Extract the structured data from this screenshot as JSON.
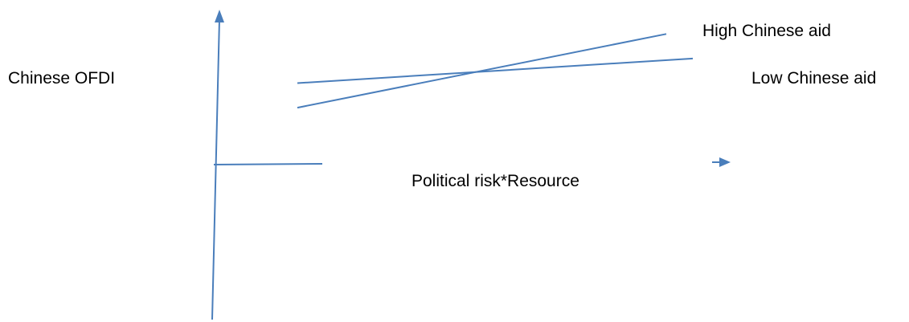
{
  "chart_data": {
    "type": "line",
    "title": "",
    "xlabel": "Political risk*Resource",
    "ylabel": "Chinese OFDI",
    "xlim": [
      0,
      10
    ],
    "ylim": [
      -10,
      10
    ],
    "grid": false,
    "legend": "right, next to each line",
    "series": [
      {
        "name": "High Chinese aid",
        "color": "#4a7ebb",
        "x": [
          0,
          10
        ],
        "y": [
          2.7,
          8.1
        ]
      },
      {
        "name": "Low Chinese aid",
        "color": "#4a7ebb",
        "x": [
          0,
          10
        ],
        "y": [
          4.5,
          6.3
        ]
      }
    ]
  },
  "colors": {
    "axis": "#4a7ebb",
    "lines": "#4a7ebb",
    "text": "#000000"
  }
}
